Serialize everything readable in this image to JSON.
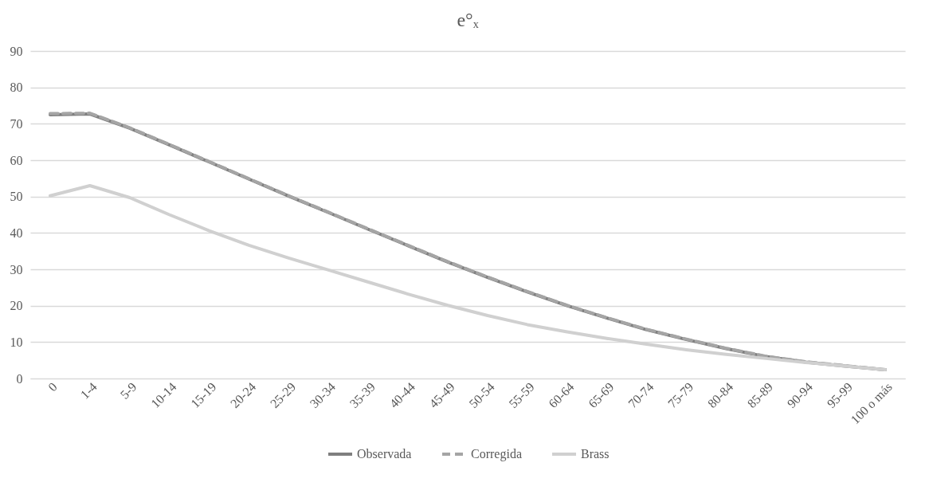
{
  "chart_data": {
    "type": "line",
    "title": "e°ₓ",
    "categories": [
      "0",
      "1-4",
      "5-9",
      "10-14",
      "15-19",
      "20-24",
      "25-29",
      "30-34",
      "35-39",
      "40-44",
      "45-49",
      "50-54",
      "55-59",
      "60-64",
      "65-69",
      "70-74",
      "75-79",
      "80-84",
      "85-89",
      "90-94",
      "95-99",
      "100 o más"
    ],
    "series": [
      {
        "name": "Observada",
        "color": "#7f7f7f",
        "line_style": "solid",
        "values": [
          72.5,
          72.7,
          68.8,
          64.2,
          59.5,
          54.8,
          50.1,
          45.6,
          41.0,
          36.5,
          32.0,
          27.8,
          23.8,
          20.0,
          16.6,
          13.4,
          10.7,
          8.2,
          6.0,
          4.5,
          3.4,
          2.4
        ]
      },
      {
        "name": "Corregida",
        "color": "#a5a5a5",
        "line_style": "dashed",
        "values": [
          72.8,
          72.9,
          68.9,
          64.3,
          59.6,
          54.9,
          50.2,
          45.7,
          41.1,
          36.6,
          32.1,
          27.9,
          23.9,
          20.1,
          16.7,
          13.5,
          10.8,
          8.3,
          6.1,
          4.6,
          3.5,
          2.4
        ]
      },
      {
        "name": "Brass",
        "color": "#d0d0d0",
        "line_style": "solid",
        "values": [
          50.2,
          53.0,
          49.7,
          45.0,
          40.6,
          36.6,
          33.1,
          29.8,
          26.5,
          23.2,
          20.1,
          17.3,
          14.8,
          12.8,
          11.0,
          9.4,
          7.9,
          6.6,
          5.5,
          4.4,
          3.4,
          2.4
        ]
      }
    ],
    "ylim": [
      0,
      90
    ],
    "yticks": [
      0,
      10,
      20,
      30,
      40,
      50,
      60,
      70,
      80,
      90
    ],
    "grid": "y",
    "legend": "bottom"
  }
}
